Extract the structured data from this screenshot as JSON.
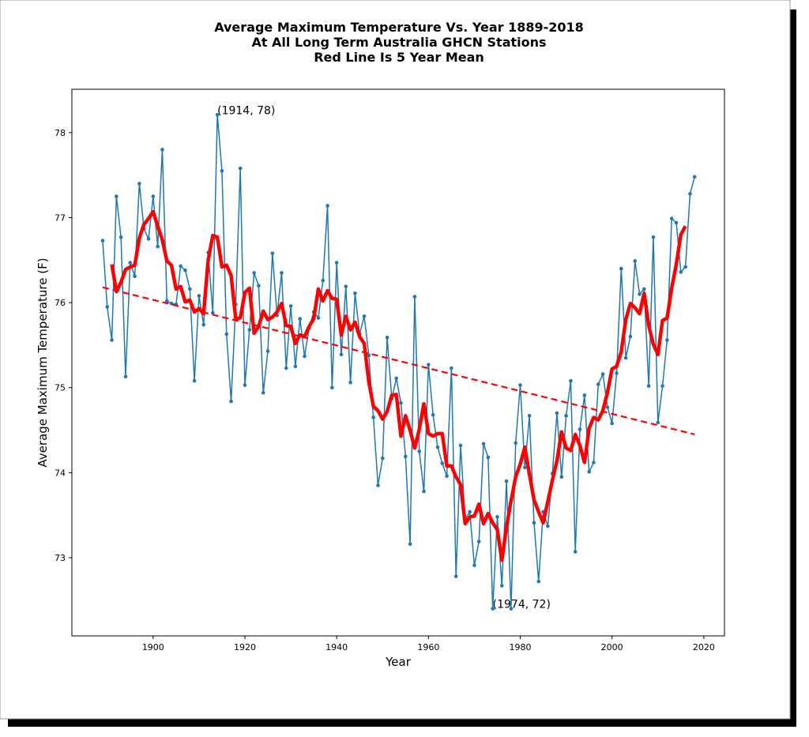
{
  "chart_data": {
    "type": "line",
    "title": [
      "Average Maximum Temperature Vs. Year 1889-2018",
      "At All Long Term Australia GHCN Stations",
      "Red Line Is 5 Year Mean"
    ],
    "xlabel": "Year",
    "ylabel": "Average Maximum Temperature (F)",
    "x": [
      1889,
      1890,
      1891,
      1892,
      1893,
      1894,
      1895,
      1896,
      1897,
      1898,
      1899,
      1900,
      1901,
      1902,
      1903,
      1904,
      1905,
      1906,
      1907,
      1908,
      1909,
      1910,
      1911,
      1912,
      1913,
      1914,
      1915,
      1916,
      1917,
      1918,
      1919,
      1920,
      1921,
      1922,
      1923,
      1924,
      1925,
      1926,
      1927,
      1928,
      1929,
      1930,
      1931,
      1932,
      1933,
      1934,
      1935,
      1936,
      1937,
      1938,
      1939,
      1940,
      1941,
      1942,
      1943,
      1944,
      1945,
      1946,
      1947,
      1948,
      1949,
      1950,
      1951,
      1952,
      1953,
      1954,
      1955,
      1956,
      1957,
      1958,
      1959,
      1960,
      1961,
      1962,
      1963,
      1964,
      1965,
      1966,
      1967,
      1968,
      1969,
      1970,
      1971,
      1972,
      1973,
      1974,
      1975,
      1976,
      1977,
      1978,
      1979,
      1980,
      1981,
      1982,
      1983,
      1984,
      1985,
      1986,
      1987,
      1988,
      1989,
      1990,
      1991,
      1992,
      1993,
      1994,
      1995,
      1996,
      1997,
      1998,
      1999,
      2000,
      2001,
      2002,
      2003,
      2004,
      2005,
      2006,
      2007,
      2008,
      2009,
      2010,
      2011,
      2012,
      2013,
      2014,
      2015,
      2016,
      2017,
      2018
    ],
    "series": [
      {
        "color": "#1f77b4",
        "marker": true,
        "values": [
          76.73,
          75.95,
          75.56,
          77.25,
          76.77,
          75.13,
          76.47,
          76.31,
          77.4,
          76.87,
          76.75,
          77.25,
          76.66,
          77.8,
          76.02,
          75.99,
          75.98,
          76.43,
          76.38,
          76.16,
          75.08,
          76.08,
          75.74,
          76.59,
          75.88,
          78.21,
          77.55,
          75.63,
          74.84,
          75.98,
          77.58,
          75.03,
          75.68,
          76.35,
          76.2,
          74.94,
          75.43,
          76.58,
          75.85,
          76.35,
          75.23,
          75.96,
          75.25,
          75.81,
          75.37,
          75.7,
          75.89,
          75.82,
          76.26,
          77.14,
          75.0,
          76.47,
          75.39,
          76.19,
          75.06,
          76.11,
          75.63,
          75.84,
          75.38,
          74.65,
          73.85,
          74.17,
          75.59,
          74.87,
          75.11,
          74.82,
          74.19,
          73.16,
          76.07,
          74.25,
          73.78,
          75.27,
          74.68,
          74.3,
          74.11,
          73.96,
          75.23,
          72.78,
          74.32,
          73.45,
          73.54,
          72.91,
          73.19,
          74.34,
          74.18,
          72.4,
          73.48,
          72.67,
          73.9,
          72.4,
          74.35,
          75.03,
          74.06,
          74.67,
          73.41,
          72.72,
          73.54,
          73.37,
          73.99,
          74.7,
          73.95,
          74.67,
          75.08,
          73.07,
          74.51,
          74.91,
          74.01,
          74.12,
          75.04,
          75.16,
          74.77,
          74.58,
          75.17,
          76.4,
          75.35,
          75.6,
          76.49,
          76.1,
          76.16,
          75.02,
          76.77,
          74.59,
          75.02,
          75.56,
          76.99,
          76.94,
          76.36,
          76.42,
          77.28,
          77.48
        ]
      },
      {
        "color": "#ff0000",
        "width": 4.5,
        "values": [
          null,
          null,
          76.45,
          76.13,
          76.24,
          76.39,
          76.42,
          76.44,
          76.76,
          76.92,
          76.99,
          77.07,
          76.9,
          76.74,
          76.49,
          76.44,
          76.16,
          76.19,
          76.01,
          76.03,
          75.89,
          75.93,
          75.87,
          76.5,
          76.79,
          76.77,
          76.42,
          76.44,
          76.32,
          75.81,
          75.82,
          76.12,
          76.17,
          75.64,
          75.72,
          75.9,
          75.8,
          75.83,
          75.89,
          75.99,
          75.73,
          75.72,
          75.52,
          75.62,
          75.6,
          75.72,
          75.81,
          76.16,
          76.02,
          76.14,
          76.05,
          76.04,
          75.62,
          75.84,
          75.68,
          75.77,
          75.6,
          75.52,
          75.07,
          74.78,
          74.73,
          74.63,
          74.72,
          74.91,
          74.92,
          74.43,
          74.67,
          74.5,
          74.29,
          74.51,
          74.81,
          74.46,
          74.43,
          74.46,
          74.46,
          74.08,
          74.08,
          73.95,
          73.86,
          73.4,
          73.48,
          73.49,
          73.63,
          73.4,
          73.52,
          73.41,
          73.33,
          72.97,
          73.36,
          73.67,
          73.95,
          74.1,
          74.3,
          73.98,
          73.68,
          73.54,
          73.41,
          73.66,
          73.91,
          74.14,
          74.48,
          74.29,
          74.26,
          74.45,
          74.32,
          74.12,
          74.52,
          74.65,
          74.62,
          74.73,
          74.94,
          75.22,
          75.25,
          75.42,
          75.8,
          75.99,
          75.94,
          75.87,
          76.11,
          75.73,
          75.51,
          75.39,
          75.79,
          75.82,
          76.17,
          76.45,
          76.8,
          76.9,
          null,
          null
        ]
      },
      {
        "color": "#ff0000",
        "width": 2.2,
        "dashed": true,
        "x": [
          1889,
          2018
        ],
        "values": [
          76.18,
          74.45
        ]
      }
    ],
    "annotations": [
      {
        "text": "(1914, 78)",
        "x": 1914,
        "y": 78.21
      },
      {
        "text": "(1974, 72)",
        "x": 1974,
        "y": 72.4
      }
    ],
    "xlim": [
      1882.3,
      2024.5
    ],
    "ylim": [
      72.08,
      78.51
    ],
    "xticks": [
      1900,
      1920,
      1940,
      1960,
      1980,
      2000,
      2020
    ],
    "yticks": [
      73,
      74,
      75,
      76,
      77,
      78
    ]
  }
}
